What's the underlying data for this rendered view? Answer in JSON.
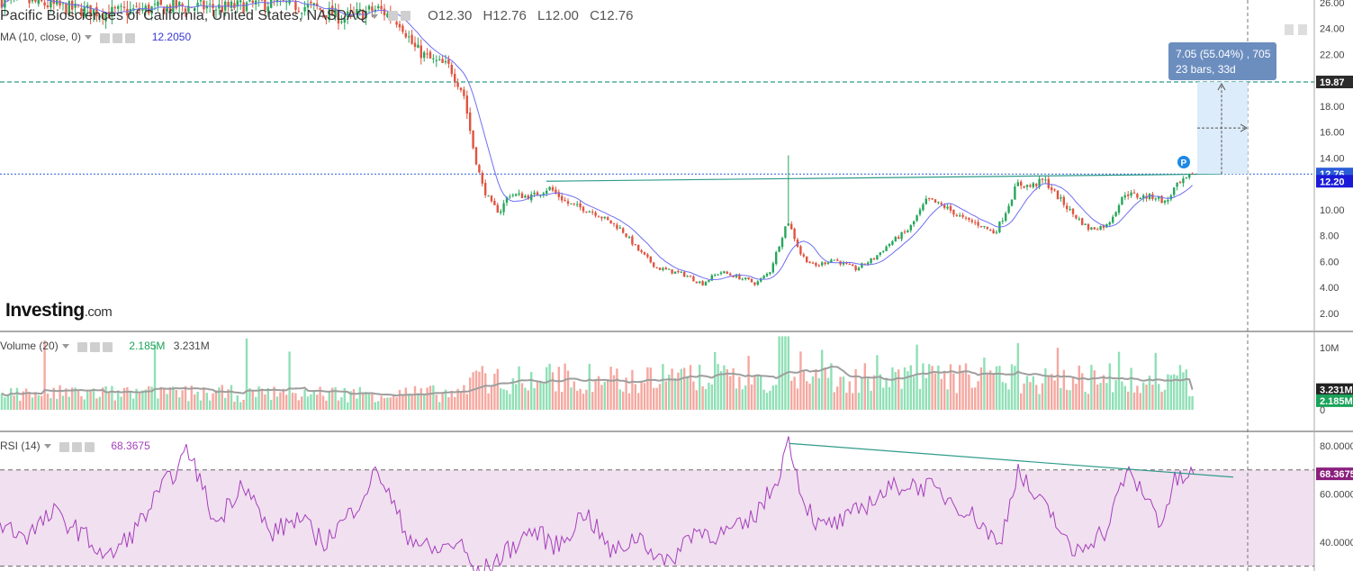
{
  "header": {
    "title": "Pacific Biosciences of California, United States, NASDAQ",
    "ohlc": {
      "open": "O12.30",
      "high": "H12.76",
      "low": "L12.00",
      "close": "C12.76"
    }
  },
  "indicators": {
    "ma_label": "MA (10, close, 0)",
    "ma_value": "12.2050",
    "volume_label": "Volume (20)",
    "volume_value": "2.185M",
    "volume_ma_value": "3.231M",
    "rsi_label": "RSI (14)",
    "rsi_value": "68.3675"
  },
  "logo": {
    "main": "Investing",
    "suffix": ".com"
  },
  "measure_tooltip": {
    "line1": "7.05 (55.04%) , 705",
    "line2": "23 bars, 33d"
  },
  "colors": {
    "up": "#26a65b",
    "down": "#e0533f",
    "ma": "#6e6ef0",
    "vol_up": "#8fe0b6",
    "vol_down": "#f5a8a0",
    "vol_ma": "#9e9e9e",
    "rsi": "#a43fbd",
    "rsi_band": "#f1e0ef",
    "price_line": "#2a5bd7",
    "target_line": "#2e9b8a",
    "trend_line": "#2e9b8a",
    "label_dark": "#2b2b2b",
    "measure": "#d9eafa",
    "tooltip_bg": "#6c8ebf",
    "rsi_label_bg": "#8a1f7d"
  },
  "chart_data": [
    {
      "type": "candlestick",
      "pane": "price",
      "yticks": [
        "26.00",
        "24.00",
        "22.00",
        "20.00",
        "18.00",
        "16.00",
        "14.00",
        "12.00",
        "10.00",
        "8.00",
        "6.00",
        "4.00",
        "2.00"
      ],
      "y_range": [
        0.6,
        26.2
      ],
      "price_labels": {
        "target": "19.87",
        "last": "12.76",
        "ma": "12.20"
      },
      "series": [
        {
          "name": "MA (10, close, 0)",
          "last": 12.205
        }
      ],
      "path_keypoints": [
        [
          0,
          26.2
        ],
        [
          40,
          26.0
        ],
        [
          80,
          25.5
        ],
        [
          120,
          25.2
        ],
        [
          150,
          25.4
        ],
        [
          200,
          25.7
        ],
        [
          250,
          25.6
        ],
        [
          300,
          26.0
        ],
        [
          350,
          25.6
        ],
        [
          380,
          24.8
        ],
        [
          420,
          25.5
        ],
        [
          445,
          24.5
        ],
        [
          460,
          22.5
        ],
        [
          480,
          21.5
        ],
        [
          500,
          21.0
        ],
        [
          515,
          19.0
        ],
        [
          525,
          15.0
        ],
        [
          535,
          12.0
        ],
        [
          545,
          10.5
        ],
        [
          555,
          9.8
        ],
        [
          565,
          11.2
        ],
        [
          590,
          11.0
        ],
        [
          610,
          11.7
        ],
        [
          630,
          10.5
        ],
        [
          660,
          9.8
        ],
        [
          690,
          8.5
        ],
        [
          710,
          6.8
        ],
        [
          730,
          5.5
        ],
        [
          760,
          5.0
        ],
        [
          780,
          4.3
        ],
        [
          800,
          5.2
        ],
        [
          820,
          4.8
        ],
        [
          840,
          4.3
        ],
        [
          855,
          5.2
        ],
        [
          865,
          7.2
        ],
        [
          875,
          9.2
        ],
        [
          890,
          6.5
        ],
        [
          905,
          5.6
        ],
        [
          925,
          6.2
        ],
        [
          950,
          5.4
        ],
        [
          970,
          6.2
        ],
        [
          990,
          7.5
        ],
        [
          1010,
          8.5
        ],
        [
          1030,
          10.8
        ],
        [
          1050,
          10.2
        ],
        [
          1070,
          9.3
        ],
        [
          1090,
          8.8
        ],
        [
          1105,
          8.2
        ],
        [
          1115,
          9.5
        ],
        [
          1130,
          12.0
        ],
        [
          1145,
          11.8
        ],
        [
          1160,
          12.3
        ],
        [
          1175,
          11.0
        ],
        [
          1190,
          9.8
        ],
        [
          1210,
          8.5
        ],
        [
          1230,
          8.8
        ],
        [
          1250,
          11.3
        ],
        [
          1265,
          11.0
        ],
        [
          1285,
          11.0
        ],
        [
          1295,
          10.5
        ],
        [
          1305,
          11.7
        ],
        [
          1327,
          12.76
        ]
      ],
      "annotations": {
        "measure": {
          "change": 7.05,
          "change_pct": 55.04,
          "ticks": 705,
          "bars": 23,
          "days": 33
        }
      }
    },
    {
      "type": "bar",
      "pane": "volume",
      "yticks": [
        "10M",
        "5M",
        "0"
      ],
      "y_range": [
        0,
        12
      ],
      "series": [
        {
          "name": "Volume",
          "last": 2.185
        },
        {
          "name": "Volume MA (20)",
          "last": 3.231
        }
      ]
    },
    {
      "type": "line",
      "pane": "rsi",
      "yticks": [
        "80.0000",
        "60.0000",
        "40.0000"
      ],
      "y_range": [
        28,
        86
      ],
      "band": [
        30,
        70
      ],
      "series": [
        {
          "name": "RSI (14)",
          "last": 68.3675
        }
      ],
      "path_keypoints": [
        [
          0,
          47
        ],
        [
          30,
          43
        ],
        [
          60,
          52
        ],
        [
          90,
          44
        ],
        [
          120,
          33
        ],
        [
          150,
          45
        ],
        [
          180,
          62
        ],
        [
          210,
          78
        ],
        [
          240,
          47
        ],
        [
          270,
          66
        ],
        [
          300,
          43
        ],
        [
          330,
          50
        ],
        [
          360,
          40
        ],
        [
          390,
          52
        ],
        [
          420,
          70
        ],
        [
          450,
          44
        ],
        [
          480,
          36
        ],
        [
          510,
          40
        ],
        [
          530,
          26
        ],
        [
          560,
          35
        ],
        [
          590,
          45
        ],
        [
          620,
          38
        ],
        [
          650,
          53
        ],
        [
          680,
          35
        ],
        [
          710,
          43
        ],
        [
          740,
          30
        ],
        [
          770,
          45
        ],
        [
          800,
          43
        ],
        [
          830,
          47
        ],
        [
          860,
          63
        ],
        [
          877,
          83
        ],
        [
          890,
          60
        ],
        [
          910,
          46
        ],
        [
          940,
          49
        ],
        [
          970,
          58
        ],
        [
          1000,
          64
        ],
        [
          1030,
          63
        ],
        [
          1060,
          57
        ],
        [
          1090,
          48
        ],
        [
          1110,
          38
        ],
        [
          1130,
          70
        ],
        [
          1150,
          58
        ],
        [
          1170,
          51
        ],
        [
          1190,
          35
        ],
        [
          1210,
          41
        ],
        [
          1230,
          45
        ],
        [
          1250,
          69
        ],
        [
          1270,
          61
        ],
        [
          1290,
          48
        ],
        [
          1305,
          65
        ],
        [
          1327,
          68.37
        ]
      ],
      "annotations": {
        "trendline": [
          [
            877,
            81
          ],
          [
            1370,
            67
          ]
        ]
      }
    }
  ]
}
